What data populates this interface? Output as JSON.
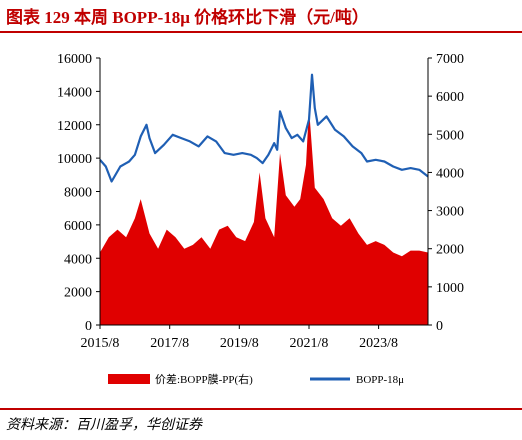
{
  "title": "图表 129    本周 BOPP-18μ 价格环比下滑（元/吨）",
  "source": "资料来源：百川盈孚，华创证券",
  "colors": {
    "title": "#c00000",
    "spread": "#e00000",
    "price": "#1f5fb4"
  },
  "chart_data": {
    "type": "area+line",
    "x_ticks": [
      "2015/8",
      "2017/8",
      "2019/8",
      "2021/8",
      "2023/8"
    ],
    "x_range": [
      "2015-08-01",
      "2024-12-31"
    ],
    "left_axis": {
      "ticks": [
        0,
        2000,
        4000,
        6000,
        8000,
        10000,
        12000,
        14000,
        16000
      ],
      "range": [
        0,
        16000
      ]
    },
    "right_axis": {
      "ticks": [
        0,
        1000,
        2000,
        3000,
        4000,
        5000,
        6000,
        7000
      ],
      "range": [
        0,
        7000
      ]
    },
    "legend_position": "bottom",
    "series": [
      {
        "name": "价差:BOPP膜-PP(右)",
        "kind": "area",
        "axis": "right",
        "points": [
          [
            "2015-08-01",
            1900
          ],
          [
            "2015-11-01",
            2300
          ],
          [
            "2016-02-01",
            2500
          ],
          [
            "2016-05-01",
            2300
          ],
          [
            "2016-08-01",
            2800
          ],
          [
            "2016-10-01",
            3300
          ],
          [
            "2017-01-01",
            2400
          ],
          [
            "2017-04-01",
            2000
          ],
          [
            "2017-07-01",
            2500
          ],
          [
            "2017-10-01",
            2300
          ],
          [
            "2018-01-01",
            2000
          ],
          [
            "2018-04-01",
            2100
          ],
          [
            "2018-07-01",
            2300
          ],
          [
            "2018-10-01",
            2000
          ],
          [
            "2019-01-01",
            2500
          ],
          [
            "2019-04-01",
            2600
          ],
          [
            "2019-07-01",
            2300
          ],
          [
            "2019-10-01",
            2200
          ],
          [
            "2020-01-01",
            2700
          ],
          [
            "2020-03-01",
            4000
          ],
          [
            "2020-05-01",
            2800
          ],
          [
            "2020-08-01",
            2300
          ],
          [
            "2020-10-01",
            4500
          ],
          [
            "2020-12-01",
            3400
          ],
          [
            "2021-03-01",
            3100
          ],
          [
            "2021-05-01",
            3300
          ],
          [
            "2021-07-01",
            4200
          ],
          [
            "2021-08-01",
            5700
          ],
          [
            "2021-10-01",
            3600
          ],
          [
            "2022-01-01",
            3300
          ],
          [
            "2022-04-01",
            2800
          ],
          [
            "2022-07-01",
            2600
          ],
          [
            "2022-10-01",
            2800
          ],
          [
            "2023-01-01",
            2400
          ],
          [
            "2023-04-01",
            2100
          ],
          [
            "2023-07-01",
            2200
          ],
          [
            "2023-10-01",
            2100
          ],
          [
            "2024-01-01",
            1900
          ],
          [
            "2024-04-01",
            1800
          ],
          [
            "2024-07-01",
            1950
          ],
          [
            "2024-10-01",
            1950
          ],
          [
            "2024-12-31",
            1900
          ]
        ]
      },
      {
        "name": "BOPP-18μ",
        "kind": "line",
        "axis": "left",
        "points": [
          [
            "2015-08-01",
            9900
          ],
          [
            "2015-10-01",
            9500
          ],
          [
            "2015-12-01",
            8600
          ],
          [
            "2016-03-01",
            9500
          ],
          [
            "2016-06-01",
            9800
          ],
          [
            "2016-08-01",
            10200
          ],
          [
            "2016-10-01",
            11300
          ],
          [
            "2016-12-01",
            12000
          ],
          [
            "2017-01-01",
            11200
          ],
          [
            "2017-03-01",
            10300
          ],
          [
            "2017-06-01",
            10800
          ],
          [
            "2017-09-01",
            11400
          ],
          [
            "2017-12-01",
            11200
          ],
          [
            "2018-03-01",
            11000
          ],
          [
            "2018-06-01",
            10700
          ],
          [
            "2018-09-01",
            11300
          ],
          [
            "2018-12-01",
            11000
          ],
          [
            "2019-03-01",
            10300
          ],
          [
            "2019-06-01",
            10200
          ],
          [
            "2019-09-01",
            10300
          ],
          [
            "2019-12-01",
            10200
          ],
          [
            "2020-02-01",
            10000
          ],
          [
            "2020-04-01",
            9700
          ],
          [
            "2020-06-01",
            10200
          ],
          [
            "2020-08-01",
            10900
          ],
          [
            "2020-09-01",
            10500
          ],
          [
            "2020-10-01",
            12800
          ],
          [
            "2020-12-01",
            11800
          ],
          [
            "2021-02-01",
            11200
          ],
          [
            "2021-04-01",
            11400
          ],
          [
            "2021-06-01",
            11000
          ],
          [
            "2021-08-01",
            12300
          ],
          [
            "2021-09-01",
            15000
          ],
          [
            "2021-10-01",
            13000
          ],
          [
            "2021-11-01",
            12000
          ],
          [
            "2022-02-01",
            12500
          ],
          [
            "2022-05-01",
            11700
          ],
          [
            "2022-08-01",
            11300
          ],
          [
            "2022-11-01",
            10700
          ],
          [
            "2023-02-01",
            10300
          ],
          [
            "2023-04-01",
            9800
          ],
          [
            "2023-07-01",
            9900
          ],
          [
            "2023-10-01",
            9800
          ],
          [
            "2024-01-01",
            9500
          ],
          [
            "2024-04-01",
            9300
          ],
          [
            "2024-07-01",
            9400
          ],
          [
            "2024-10-01",
            9300
          ],
          [
            "2024-12-31",
            8900
          ]
        ]
      }
    ]
  }
}
